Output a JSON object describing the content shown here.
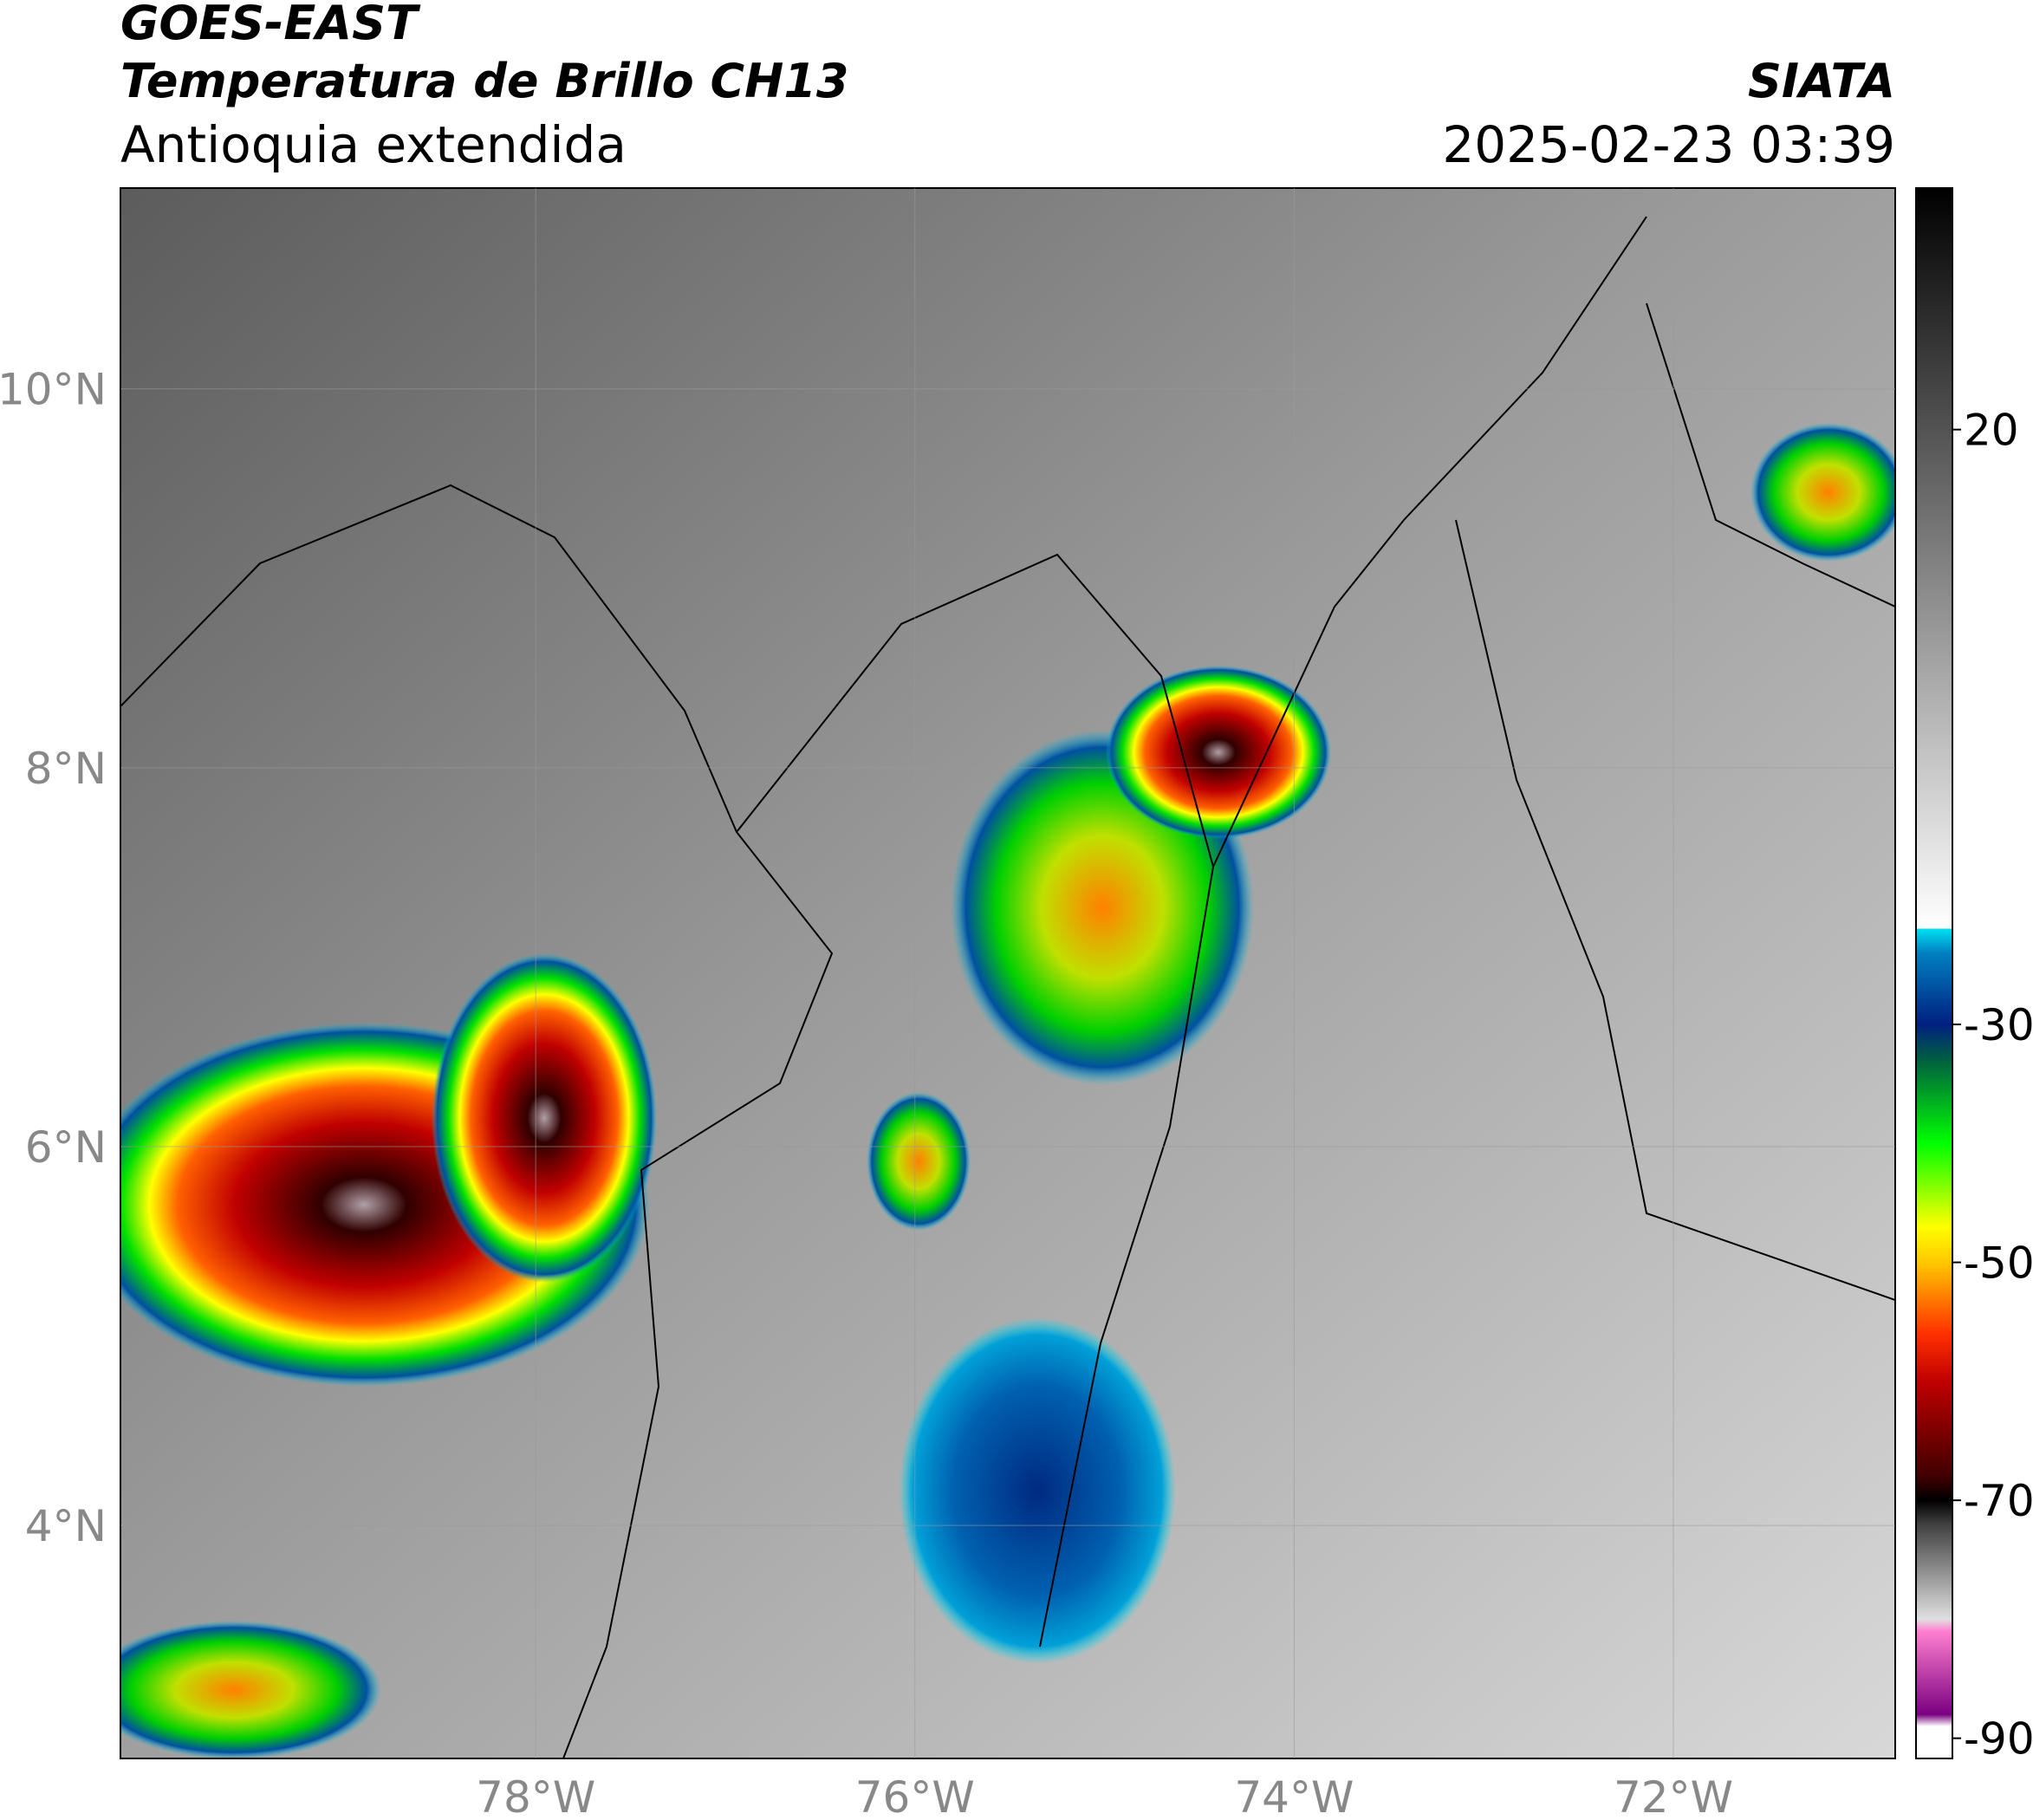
{
  "header": {
    "title": "GOES-EAST",
    "subtitle": "Temperatura de Brillo CH13",
    "region": "Antioquia extendida",
    "source": "SIATA",
    "datetime": "2025-02-23 03:39"
  },
  "map": {
    "lonlim": [
      -80.19,
      -70.83
    ],
    "latlim": [
      2.77,
      11.06
    ],
    "lonticks": [
      {
        "value": -78,
        "label": "78°W"
      },
      {
        "value": -76,
        "label": "76°W"
      },
      {
        "value": -74,
        "label": "74°W"
      },
      {
        "value": -72,
        "label": "72°W"
      }
    ],
    "latticks": [
      {
        "value": 10,
        "label": "10°N"
      },
      {
        "value": 8,
        "label": "8°N"
      },
      {
        "value": 6,
        "label": "6°N"
      },
      {
        "value": 4,
        "label": "4°N"
      }
    ],
    "grid": true
  },
  "colorbar": {
    "clim": [
      -91.7,
      40.3
    ],
    "ticks": [
      20,
      -30,
      -50,
      -70,
      -90
    ],
    "colormap": [
      [
        -91.7,
        "#ffffff"
      ],
      [
        -89,
        "#ffffff"
      ],
      [
        -88,
        "#7a0080"
      ],
      [
        -81,
        "#ff80d0"
      ],
      [
        -80,
        "#e0e0e0"
      ],
      [
        -72,
        "#404040"
      ],
      [
        -70,
        "#000000"
      ],
      [
        -68,
        "#400000"
      ],
      [
        -60,
        "#c00000"
      ],
      [
        -56,
        "#ff3000"
      ],
      [
        -50,
        "#ffc800"
      ],
      [
        -47,
        "#ffff00"
      ],
      [
        -40,
        "#00ff00"
      ],
      [
        -33,
        "#006040"
      ],
      [
        -30,
        "#002080"
      ],
      [
        -24,
        "#0080c0"
      ],
      [
        -22,
        "#00e0f0"
      ],
      [
        -21.9,
        "#ffffff"
      ],
      [
        40.3,
        "#000000"
      ]
    ]
  }
}
